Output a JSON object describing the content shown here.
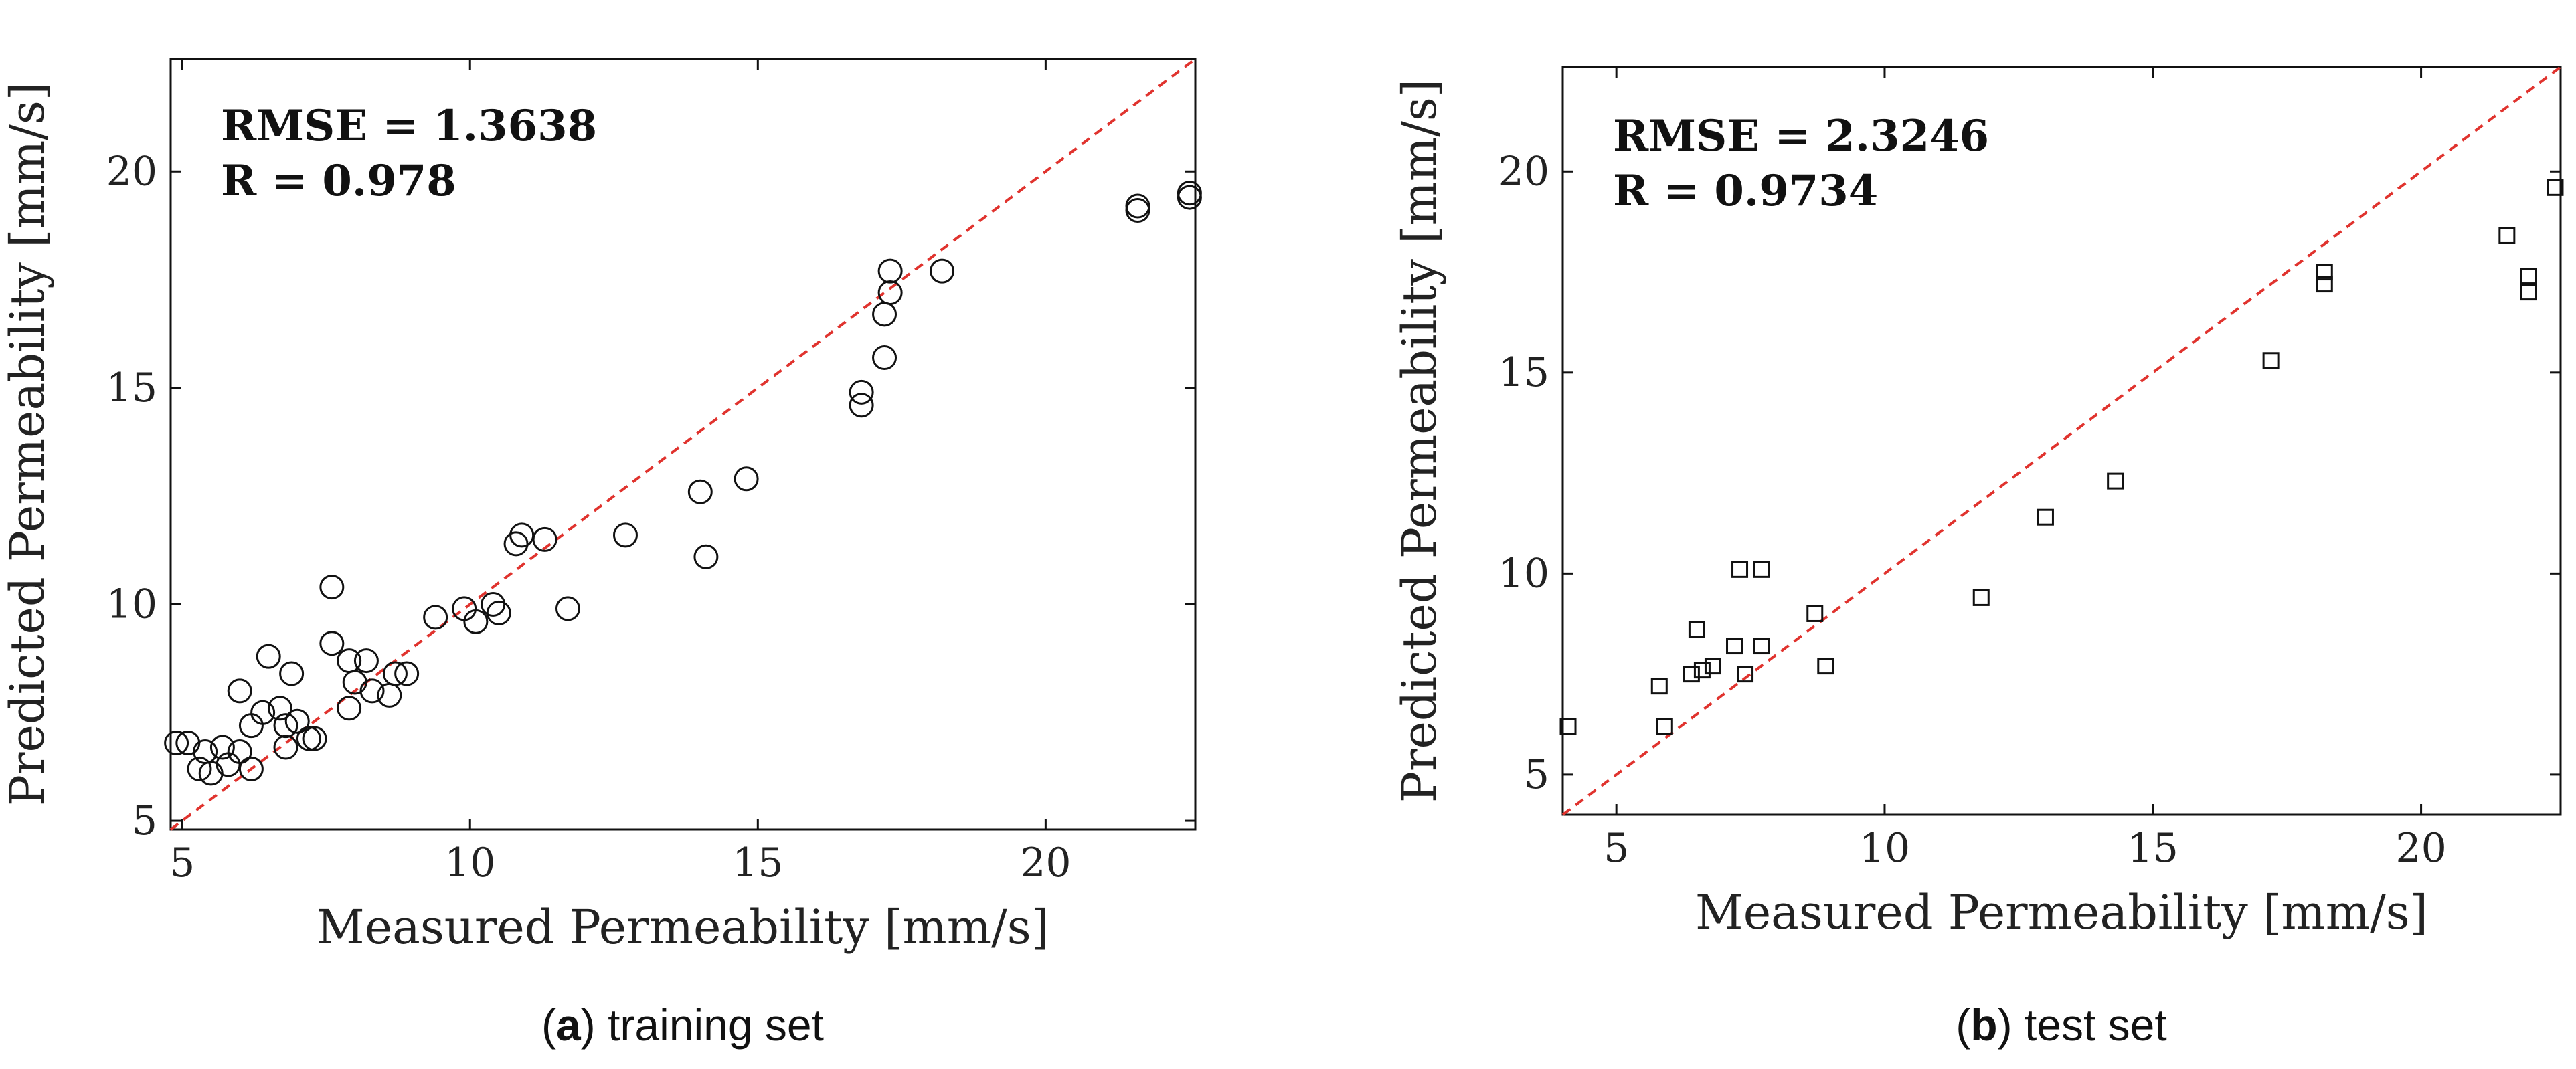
{
  "chart_data": [
    {
      "type": "scatter",
      "caption": {
        "letter": "a",
        "text": "training set"
      },
      "xlabel": "Measured Permeability [mm/s]",
      "ylabel": "Predicted Permeability [mm/s]",
      "xlim": [
        4.8,
        22.6
      ],
      "ylim": [
        4.8,
        22.6
      ],
      "xticks": [
        5,
        10,
        15,
        20
      ],
      "yticks": [
        5,
        10,
        15,
        20
      ],
      "annotations": [
        "RMSE = 1.3638",
        "R = 0.978"
      ],
      "marker": "circle",
      "reference_line": {
        "style": "dashed",
        "color": "#e0332e",
        "from": [
          4.8,
          4.8
        ],
        "to": [
          22.6,
          22.6
        ]
      },
      "points": [
        {
          "x": 4.9,
          "y": 6.8
        },
        {
          "x": 5.1,
          "y": 6.8
        },
        {
          "x": 5.3,
          "y": 6.2
        },
        {
          "x": 5.4,
          "y": 6.6
        },
        {
          "x": 5.5,
          "y": 6.1
        },
        {
          "x": 5.7,
          "y": 6.7
        },
        {
          "x": 5.8,
          "y": 6.3
        },
        {
          "x": 6.0,
          "y": 6.6
        },
        {
          "x": 6.0,
          "y": 8.0
        },
        {
          "x": 6.2,
          "y": 7.2
        },
        {
          "x": 6.2,
          "y": 6.2
        },
        {
          "x": 6.4,
          "y": 7.5
        },
        {
          "x": 6.5,
          "y": 8.8
        },
        {
          "x": 6.7,
          "y": 7.6
        },
        {
          "x": 6.8,
          "y": 7.2
        },
        {
          "x": 6.8,
          "y": 6.7
        },
        {
          "x": 6.9,
          "y": 8.4
        },
        {
          "x": 7.0,
          "y": 7.3
        },
        {
          "x": 7.2,
          "y": 6.9
        },
        {
          "x": 7.3,
          "y": 6.9
        },
        {
          "x": 7.6,
          "y": 10.4
        },
        {
          "x": 7.6,
          "y": 9.1
        },
        {
          "x": 7.9,
          "y": 8.7
        },
        {
          "x": 7.9,
          "y": 7.6
        },
        {
          "x": 8.0,
          "y": 8.2
        },
        {
          "x": 8.2,
          "y": 8.7
        },
        {
          "x": 8.3,
          "y": 8.0
        },
        {
          "x": 8.6,
          "y": 7.9
        },
        {
          "x": 8.7,
          "y": 8.4
        },
        {
          "x": 8.9,
          "y": 8.4
        },
        {
          "x": 9.4,
          "y": 9.7
        },
        {
          "x": 9.9,
          "y": 9.9
        },
        {
          "x": 10.1,
          "y": 9.6
        },
        {
          "x": 10.4,
          "y": 10.0
        },
        {
          "x": 10.5,
          "y": 9.8
        },
        {
          "x": 10.8,
          "y": 11.4
        },
        {
          "x": 10.9,
          "y": 11.6
        },
        {
          "x": 11.3,
          "y": 11.5
        },
        {
          "x": 11.7,
          "y": 9.9
        },
        {
          "x": 12.7,
          "y": 11.6
        },
        {
          "x": 14.0,
          "y": 12.6
        },
        {
          "x": 14.1,
          "y": 11.1
        },
        {
          "x": 14.8,
          "y": 12.9
        },
        {
          "x": 16.8,
          "y": 14.9
        },
        {
          "x": 16.8,
          "y": 14.6
        },
        {
          "x": 17.2,
          "y": 15.7
        },
        {
          "x": 17.2,
          "y": 16.7
        },
        {
          "x": 17.3,
          "y": 17.2
        },
        {
          "x": 17.3,
          "y": 17.7
        },
        {
          "x": 18.2,
          "y": 17.7
        },
        {
          "x": 21.6,
          "y": 19.2
        },
        {
          "x": 21.6,
          "y": 19.1
        },
        {
          "x": 22.5,
          "y": 19.5
        },
        {
          "x": 22.5,
          "y": 19.4
        }
      ]
    },
    {
      "type": "scatter",
      "caption": {
        "letter": "b",
        "text": "test set"
      },
      "xlabel": "Measured Permeability [mm/s]",
      "ylabel": "Predicted Permeability [mm/s]",
      "xlim": [
        4.0,
        22.6
      ],
      "ylim": [
        4.0,
        22.6
      ],
      "xticks": [
        5,
        10,
        15,
        20
      ],
      "yticks": [
        5,
        10,
        15,
        20
      ],
      "annotations": [
        "RMSE = 2.3246",
        "R = 0.9734"
      ],
      "marker": "square",
      "reference_line": {
        "style": "dashed",
        "color": "#e0332e",
        "from": [
          4.0,
          4.0
        ],
        "to": [
          22.6,
          22.6
        ]
      },
      "points": [
        {
          "x": 4.1,
          "y": 6.2
        },
        {
          "x": 5.8,
          "y": 7.2
        },
        {
          "x": 5.9,
          "y": 6.2
        },
        {
          "x": 6.4,
          "y": 7.5
        },
        {
          "x": 6.5,
          "y": 8.6
        },
        {
          "x": 6.6,
          "y": 7.6
        },
        {
          "x": 6.8,
          "y": 7.7
        },
        {
          "x": 7.2,
          "y": 8.2
        },
        {
          "x": 7.3,
          "y": 10.1
        },
        {
          "x": 7.4,
          "y": 7.5
        },
        {
          "x": 7.7,
          "y": 10.1
        },
        {
          "x": 7.7,
          "y": 8.2
        },
        {
          "x": 8.7,
          "y": 9.0
        },
        {
          "x": 8.9,
          "y": 7.7
        },
        {
          "x": 11.8,
          "y": 9.4
        },
        {
          "x": 13.0,
          "y": 11.4
        },
        {
          "x": 14.3,
          "y": 12.3
        },
        {
          "x": 17.2,
          "y": 15.3
        },
        {
          "x": 18.2,
          "y": 17.5
        },
        {
          "x": 18.2,
          "y": 17.2
        },
        {
          "x": 21.6,
          "y": 18.4
        },
        {
          "x": 22.0,
          "y": 17.4
        },
        {
          "x": 22.0,
          "y": 17.0
        },
        {
          "x": 22.5,
          "y": 19.6
        }
      ]
    }
  ]
}
